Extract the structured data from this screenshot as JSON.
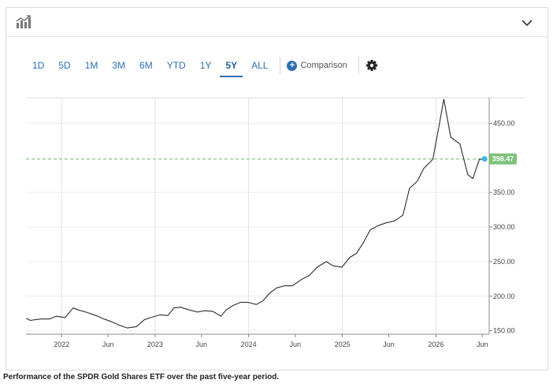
{
  "toolbar": {
    "ranges": [
      "1D",
      "5D",
      "1M",
      "3M",
      "6M",
      "YTD",
      "1Y",
      "5Y",
      "ALL"
    ],
    "active_range": "5Y",
    "comparison_label": "Comparison"
  },
  "icons": {
    "chart_type": "bar-chart-icon",
    "collapse": "chevron-down-icon",
    "add": "plus-circle-icon",
    "settings": "gear-icon"
  },
  "colors": {
    "accent": "#2e6fb4",
    "line": "#2b2b2b",
    "last_price_bg": "#7cc27a",
    "last_price_line": "#8fd08c"
  },
  "caption": "Performance of the SPDR Gold Shares ETF over the past five-year period.",
  "chart_data": {
    "type": "line",
    "title": "",
    "xlabel": "",
    "ylabel": "",
    "x_tick_labels": [
      "2022",
      "Jun",
      "2023",
      "Jun",
      "2024",
      "Jun",
      "2025",
      "Jun",
      "2026",
      "Jun"
    ],
    "x_tick_dates": [
      "2022-01-01",
      "2022-07-01",
      "2023-01-01",
      "2023-07-01",
      "2024-01-01",
      "2024-07-01",
      "2025-01-01",
      "2025-07-01",
      "2026-01-01",
      "2026-07-01"
    ],
    "y_tick_labels": [
      "150.00",
      "200.00",
      "250.00",
      "300.00",
      "350.00",
      "450.00"
    ],
    "y_tick_values": [
      150,
      200,
      250,
      300,
      350,
      450
    ],
    "ylim": [
      145,
      487
    ],
    "xlim": [
      "2021-08-15",
      "2026-07-28"
    ],
    "last_price": 398.47,
    "last_price_label": "398.47",
    "grid": true,
    "series": [
      {
        "x": [
          "2021-08-16",
          "2021-09-01",
          "2021-09-20",
          "2021-10-15",
          "2021-11-15",
          "2021-12-10",
          "2022-01-15",
          "2022-02-15",
          "2022-03-08",
          "2022-04-05",
          "2022-05-15",
          "2022-06-15",
          "2022-07-15",
          "2022-08-15",
          "2022-09-15",
          "2022-10-20",
          "2022-11-20",
          "2022-12-15",
          "2023-01-20",
          "2023-02-20",
          "2023-03-15",
          "2023-04-10",
          "2023-05-15",
          "2023-06-15",
          "2023-07-15",
          "2023-08-15",
          "2023-09-15",
          "2023-10-05",
          "2023-10-30",
          "2023-11-30",
          "2023-12-30",
          "2024-01-31",
          "2024-02-25",
          "2024-03-25",
          "2024-04-20",
          "2024-05-20",
          "2024-06-20",
          "2024-07-25",
          "2024-08-25",
          "2024-09-25",
          "2024-10-30",
          "2024-11-25",
          "2024-12-30",
          "2025-01-30",
          "2025-02-25",
          "2025-03-25",
          "2025-04-20",
          "2025-05-20",
          "2025-06-20",
          "2025-07-25",
          "2025-08-25",
          "2025-09-20",
          "2025-10-20",
          "2025-11-15",
          "2025-12-20",
          "2026-01-15",
          "2026-02-01",
          "2026-02-28",
          "2026-04-05",
          "2026-05-05",
          "2026-05-25",
          "2026-06-20",
          "2026-07-10"
        ],
        "values": [
          168,
          165,
          166,
          167,
          167,
          171,
          169,
          183,
          180,
          177,
          172,
          167,
          163,
          158,
          154,
          156,
          166,
          169,
          173,
          172,
          183,
          184,
          180,
          177,
          179,
          178,
          171,
          180,
          186,
          191,
          191,
          188,
          193,
          205,
          212,
          215,
          215,
          224,
          230,
          242,
          250,
          244,
          242,
          256,
          262,
          278,
          296,
          302,
          306,
          309,
          317,
          356,
          366,
          385,
          398,
          450,
          485,
          430,
          420,
          376,
          370,
          398,
          398
        ]
      }
    ]
  }
}
